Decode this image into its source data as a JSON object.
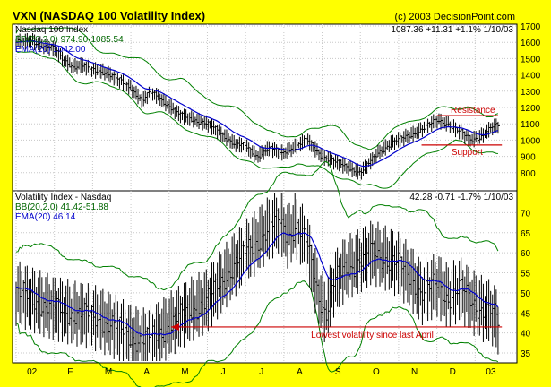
{
  "header": {
    "title": "VXN (NASDAQ 100 Volatility Index)",
    "copyright": "(c) 2003 DecisionPoint.com"
  },
  "colors": {
    "background": "#ffff00",
    "panel": "#ffffff",
    "price_bars": "#000000",
    "bollinger": "#008000",
    "ema": "#0000cc",
    "annotation": "#cc0000",
    "grid": "#c8c8c8"
  },
  "x_axis": {
    "labels": [
      "02",
      "F",
      "M",
      "A",
      "M",
      "J",
      "J",
      "A",
      "S",
      "O",
      "N",
      "D",
      "03"
    ]
  },
  "chart_data": [
    {
      "type": "line",
      "panel": "Nasdaq 100 Index",
      "legend": [
        "Nasdaq 100 Index",
        "BB(20,2.0) 974.90-1085.54",
        "EMA(20) 1042.00"
      ],
      "last_quote": "1087.36  +11.31  +1.1%  1/10/03",
      "ylim": [
        700,
        1700
      ],
      "yticks": [
        800,
        900,
        1000,
        1100,
        1200,
        1300,
        1400,
        1500,
        1600,
        1700
      ],
      "x_months": [
        "02",
        "F",
        "M",
        "A",
        "M",
        "J",
        "J",
        "A",
        "S",
        "O",
        "N",
        "D",
        "03"
      ],
      "close_anchors": [
        [
          0,
          1600
        ],
        [
          0.4,
          1610
        ],
        [
          0.7,
          1580
        ],
        [
          1.0,
          1560
        ],
        [
          1.2,
          1500
        ],
        [
          1.5,
          1450
        ],
        [
          1.7,
          1460
        ],
        [
          2.0,
          1430
        ],
        [
          2.3,
          1420
        ],
        [
          2.6,
          1380
        ],
        [
          3.0,
          1320
        ],
        [
          3.3,
          1240
        ],
        [
          3.5,
          1290
        ],
        [
          3.7,
          1270
        ],
        [
          4.0,
          1210
        ],
        [
          4.3,
          1150
        ],
        [
          4.6,
          1130
        ],
        [
          5.0,
          1100
        ],
        [
          5.3,
          1050
        ],
        [
          5.7,
          980
        ],
        [
          6.0,
          960
        ],
        [
          6.3,
          900
        ],
        [
          6.6,
          950
        ],
        [
          7.0,
          920
        ],
        [
          7.3,
          960
        ],
        [
          7.6,
          1000
        ],
        [
          7.8,
          950
        ],
        [
          8.0,
          900
        ],
        [
          8.3,
          870
        ],
        [
          8.6,
          840
        ],
        [
          9.0,
          800
        ],
        [
          9.2,
          850
        ],
        [
          9.5,
          930
        ],
        [
          9.8,
          980
        ],
        [
          10.1,
          1010
        ],
        [
          10.4,
          1040
        ],
        [
          10.7,
          1080
        ],
        [
          11.0,
          1120
        ],
        [
          11.3,
          1100
        ],
        [
          11.6,
          1050
        ],
        [
          11.9,
          1000
        ],
        [
          12.2,
          1030
        ],
        [
          12.45,
          1080
        ],
        [
          12.6,
          1087
        ]
      ],
      "annotations": [
        {
          "text": "Resistance",
          "y": 1150,
          "x_from": 11.0,
          "x_to": 12.6
        },
        {
          "text": "Support",
          "y": 970,
          "x_from": 10.6,
          "x_to": 12.7
        }
      ]
    },
    {
      "type": "line",
      "panel": "Volatility Index - Nasdaq",
      "legend": [
        "Volatility Index - Nasdaq",
        "BB(20,2.0) 41.42-51.88",
        "EMA(20) 46.14"
      ],
      "last_quote": "42.28  -0.71  -1.7%  1/10/03",
      "ylim": [
        33,
        75
      ],
      "yticks": [
        35,
        40,
        45,
        50,
        55,
        60,
        65,
        70
      ],
      "x_months": [
        "02",
        "F",
        "M",
        "A",
        "M",
        "J",
        "J",
        "A",
        "S",
        "O",
        "N",
        "D",
        "03"
      ],
      "close_anchors": [
        [
          0,
          50
        ],
        [
          0.5,
          48
        ],
        [
          1.0,
          46
        ],
        [
          1.5,
          45
        ],
        [
          2.0,
          44
        ],
        [
          2.5,
          42
        ],
        [
          3.0,
          39
        ],
        [
          3.3,
          38
        ],
        [
          3.6,
          39
        ],
        [
          4.0,
          42
        ],
        [
          4.3,
          44
        ],
        [
          4.6,
          46
        ],
        [
          5.0,
          48
        ],
        [
          5.3,
          52
        ],
        [
          5.7,
          57
        ],
        [
          6.0,
          60
        ],
        [
          6.3,
          63
        ],
        [
          6.6,
          66
        ],
        [
          6.9,
          68
        ],
        [
          7.1,
          64
        ],
        [
          7.3,
          67
        ],
        [
          7.6,
          62
        ],
        [
          7.9,
          50
        ],
        [
          8.1,
          45
        ],
        [
          8.3,
          52
        ],
        [
          8.6,
          56
        ],
        [
          9.0,
          58
        ],
        [
          9.3,
          60
        ],
        [
          9.6,
          59
        ],
        [
          10.0,
          57
        ],
        [
          10.3,
          54
        ],
        [
          10.6,
          50
        ],
        [
          11.0,
          52
        ],
        [
          11.3,
          49
        ],
        [
          11.6,
          51
        ],
        [
          11.9,
          48
        ],
        [
          12.2,
          46
        ],
        [
          12.45,
          45
        ],
        [
          12.6,
          42.3
        ]
      ],
      "annotations": [
        {
          "text": "Lowest volatility since last April",
          "y": 41.5,
          "x_from": 4.05,
          "x_to": 12.7
        }
      ]
    }
  ]
}
